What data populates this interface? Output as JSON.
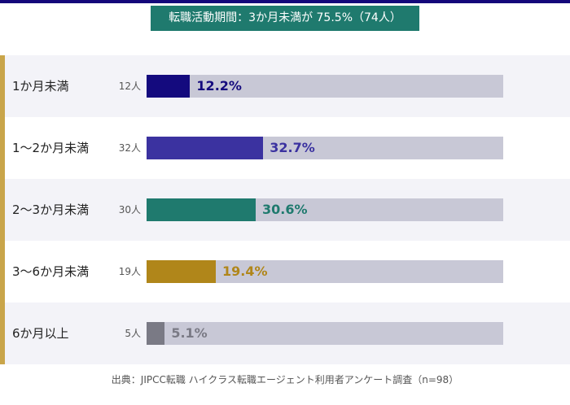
{
  "chart_data": {
    "type": "bar",
    "title": "転職活動期間：3か月未満が 75.5%（74人）",
    "categories": [
      "1か月未満",
      "1〜2か月未満",
      "2〜3か月未満",
      "3〜6か月未満",
      "6か月以上"
    ],
    "counts": [
      "12人",
      "32人",
      "30人",
      "19人",
      "5人"
    ],
    "values": [
      12.2,
      32.7,
      30.6,
      19.4,
      5.1
    ],
    "value_labels": [
      "12.2%",
      "32.7%",
      "30.6%",
      "19.4%",
      "5.1%"
    ],
    "colors": [
      "#140a7e",
      "#3b32a0",
      "#1f7a6e",
      "#b0861a",
      "#7a7a85"
    ],
    "ylim": [
      0,
      100
    ],
    "source": "出典：JIPCC転職 ハイクラス転職エージェント利用者アンケート調査（n=98）"
  }
}
